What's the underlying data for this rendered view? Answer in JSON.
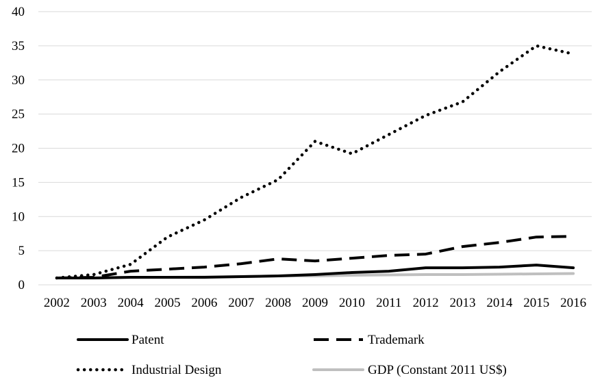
{
  "chart_data": {
    "type": "line",
    "title": "",
    "xlabel": "",
    "ylabel": "",
    "categories": [
      "2002",
      "2003",
      "2004",
      "2005",
      "2006",
      "2007",
      "2008",
      "2009",
      "2010",
      "2011",
      "2012",
      "2013",
      "2014",
      "2015",
      "2016"
    ],
    "ylim": [
      0,
      40
    ],
    "yticks": [
      0,
      5,
      10,
      15,
      20,
      25,
      30,
      35,
      40
    ],
    "grid": true,
    "legend_position": "bottom",
    "series": [
      {
        "name": "Patent",
        "style": "solid",
        "color": "#000000",
        "values": [
          1.0,
          1.0,
          1.1,
          1.1,
          1.1,
          1.2,
          1.3,
          1.5,
          1.8,
          2.0,
          2.5,
          2.5,
          2.6,
          2.9,
          2.5
        ]
      },
      {
        "name": "Trademark",
        "style": "dashed",
        "color": "#000000",
        "values": [
          1.0,
          1.1,
          2.0,
          2.3,
          2.6,
          3.1,
          3.8,
          3.5,
          3.9,
          4.3,
          4.5,
          5.6,
          6.2,
          7.0,
          7.1
        ]
      },
      {
        "name": "Industrial Design",
        "style": "dotted",
        "color": "#000000",
        "values": [
          1.0,
          1.5,
          3.0,
          7.0,
          9.5,
          12.8,
          15.4,
          21.0,
          19.2,
          22.0,
          24.8,
          26.8,
          31.2,
          35.0,
          33.8
        ]
      },
      {
        "name": "GDP (Constant 2011 US$)",
        "style": "solid",
        "color": "#bfbfbf",
        "values": [
          1.0,
          1.0,
          1.1,
          1.1,
          1.15,
          1.2,
          1.3,
          1.3,
          1.4,
          1.45,
          1.5,
          1.5,
          1.55,
          1.6,
          1.65
        ]
      }
    ]
  }
}
